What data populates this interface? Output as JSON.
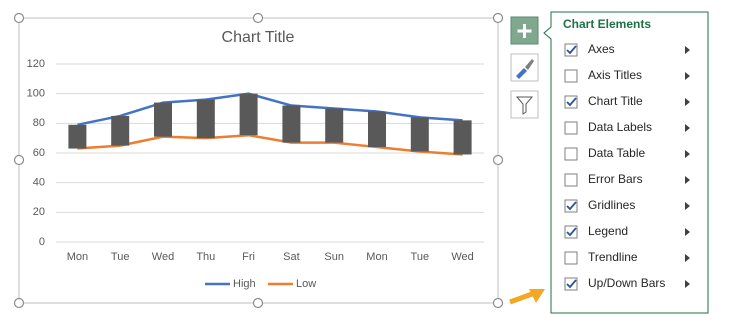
{
  "chart_data": {
    "type": "line",
    "title": "Chart Title",
    "categories": [
      "Mon",
      "Tue",
      "Wed",
      "Thu",
      "Fri",
      "Sat",
      "Sun",
      "Mon",
      "Tue",
      "Wed"
    ],
    "series": [
      {
        "name": "High",
        "color": "#4472c4",
        "values": [
          79,
          85,
          94,
          96,
          100,
          92,
          90,
          88,
          84,
          82
        ]
      },
      {
        "name": "Low",
        "color": "#ed7d31",
        "values": [
          63,
          65,
          71,
          70,
          72,
          67,
          67,
          64,
          61,
          59
        ]
      }
    ],
    "up_down_bars": true,
    "down_bar_color": "#595959",
    "ylim": [
      0,
      120
    ],
    "yticks": [
      0,
      20,
      40,
      60,
      80,
      100,
      120
    ],
    "grid": true,
    "legend": "bottom"
  },
  "panel": {
    "title": "Chart Elements",
    "items": [
      {
        "label": "Axes",
        "checked": true
      },
      {
        "label": "Axis Titles",
        "checked": false
      },
      {
        "label": "Chart Title",
        "checked": true
      },
      {
        "label": "Data Labels",
        "checked": false
      },
      {
        "label": "Data Table",
        "checked": false
      },
      {
        "label": "Error Bars",
        "checked": false
      },
      {
        "label": "Gridlines",
        "checked": true
      },
      {
        "label": "Legend",
        "checked": true
      },
      {
        "label": "Trendline",
        "checked": false
      },
      {
        "label": "Up/Down Bars",
        "checked": true
      }
    ]
  }
}
